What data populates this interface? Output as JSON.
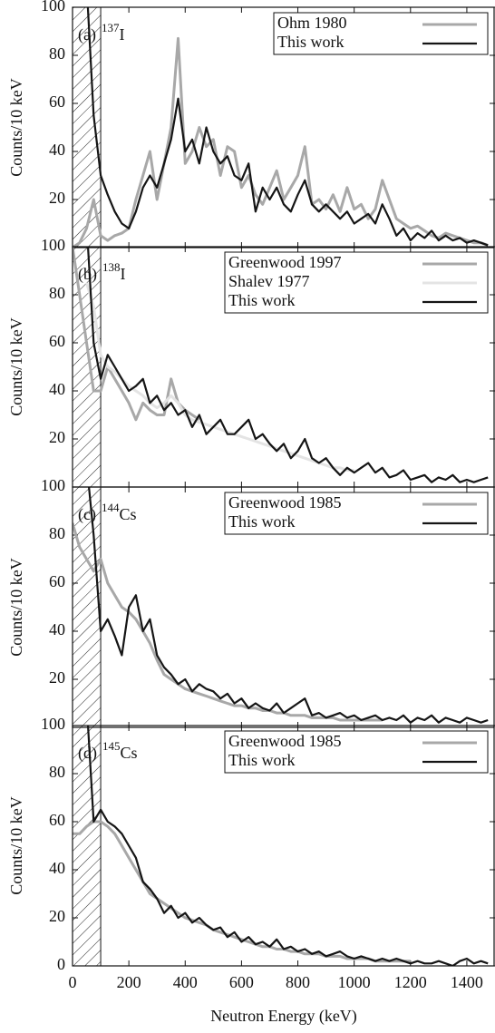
{
  "chart_data": [
    {
      "type": "line",
      "panel_label": "(a)",
      "mass_number": "137",
      "element": "I",
      "ylabel": "Counts/10 keV",
      "legend": "upper right",
      "shaded_xrange": [
        0,
        100
      ],
      "xlim": [
        0,
        1500
      ],
      "ylim": [
        0,
        100
      ],
      "yticks": [
        20,
        40,
        60,
        80,
        100
      ],
      "x": [
        0,
        25,
        50,
        75,
        100,
        125,
        150,
        175,
        200,
        225,
        250,
        275,
        300,
        325,
        350,
        375,
        400,
        425,
        450,
        475,
        500,
        525,
        550,
        575,
        600,
        625,
        650,
        675,
        700,
        725,
        750,
        775,
        800,
        825,
        850,
        875,
        900,
        925,
        950,
        975,
        1000,
        1025,
        1050,
        1075,
        1100,
        1125,
        1150,
        1175,
        1200,
        1225,
        1250,
        1275,
        1300,
        1325,
        1350,
        1375,
        1400,
        1425,
        1450,
        1475
      ],
      "series": [
        {
          "name": "Ohm 1980",
          "color": "#a8a8a8",
          "values": [
            0,
            2,
            8,
            20,
            5,
            3,
            5,
            6,
            8,
            20,
            30,
            40,
            20,
            35,
            50,
            87,
            35,
            40,
            50,
            42,
            45,
            30,
            42,
            40,
            25,
            30,
            22,
            18,
            25,
            32,
            20,
            25,
            30,
            42,
            18,
            20,
            16,
            22,
            15,
            25,
            16,
            18,
            12,
            16,
            28,
            20,
            12,
            10,
            8,
            9,
            7,
            5,
            4,
            6,
            5,
            4,
            3,
            2,
            2,
            1
          ]
        },
        {
          "name": "This work",
          "color": "#151515",
          "values": [
            null,
            null,
            110,
            55,
            30,
            22,
            15,
            10,
            8,
            15,
            25,
            30,
            25,
            35,
            45,
            62,
            40,
            45,
            35,
            50,
            40,
            35,
            38,
            30,
            28,
            35,
            15,
            25,
            20,
            25,
            18,
            15,
            22,
            28,
            18,
            15,
            18,
            15,
            12,
            15,
            10,
            12,
            14,
            10,
            18,
            12,
            5,
            8,
            3,
            6,
            4,
            7,
            3,
            5,
            3,
            4,
            2,
            3,
            2,
            1
          ]
        }
      ]
    },
    {
      "type": "line",
      "panel_label": "(b)",
      "mass_number": "138",
      "element": "I",
      "ylabel": "Counts/10 keV",
      "legend": "upper right",
      "shaded_xrange": [
        0,
        100
      ],
      "xlim": [
        0,
        1500
      ],
      "ylim": [
        0,
        100
      ],
      "yticks": [
        20,
        40,
        60,
        80,
        100
      ],
      "x": [
        0,
        25,
        50,
        75,
        100,
        125,
        150,
        175,
        200,
        225,
        250,
        275,
        300,
        325,
        350,
        375,
        400,
        425,
        450,
        475,
        500,
        525,
        550,
        575,
        600,
        625,
        650,
        675,
        700,
        725,
        750,
        775,
        800,
        825,
        850,
        875,
        900,
        925,
        950,
        975,
        1000,
        1025,
        1050,
        1075,
        1100,
        1125,
        1150,
        1175,
        1200,
        1225,
        1250,
        1275,
        1300,
        1325,
        1350,
        1375,
        1400,
        1425,
        1450,
        1475
      ],
      "series": [
        {
          "name": "Greenwood 1997",
          "color": "#a8a8a8",
          "values": [
            100,
            80,
            60,
            40,
            40,
            50,
            45,
            40,
            35,
            28,
            35,
            32,
            30,
            30,
            45,
            35,
            32,
            30,
            28,
            null,
            null,
            null,
            null,
            null,
            null,
            null,
            null,
            null,
            null,
            null,
            null,
            null,
            null,
            null,
            null,
            null,
            null,
            null,
            null,
            null,
            null,
            null,
            null,
            null,
            null,
            null,
            null,
            null,
            null,
            null,
            null,
            null,
            null,
            null,
            null,
            null,
            null,
            null,
            null,
            null
          ]
        },
        {
          "name": "Shalev 1977",
          "color": "#e4e4e4",
          "values": [
            null,
            null,
            85,
            75,
            55,
            50,
            48,
            45,
            42,
            40,
            38,
            35,
            33,
            35,
            38,
            35,
            30,
            28,
            27,
            26,
            25,
            24,
            23,
            22,
            21,
            20,
            19,
            18,
            17,
            16,
            15,
            14,
            13,
            12,
            11,
            10,
            9,
            8,
            8,
            7,
            7,
            null,
            null,
            null,
            null,
            null,
            null,
            null,
            null,
            null,
            null,
            null,
            null,
            null,
            null,
            null,
            null,
            null,
            null,
            null
          ]
        },
        {
          "name": "This work",
          "color": "#151515",
          "values": [
            null,
            null,
            110,
            60,
            45,
            55,
            50,
            45,
            40,
            42,
            45,
            35,
            38,
            32,
            35,
            30,
            32,
            25,
            30,
            22,
            25,
            28,
            22,
            22,
            25,
            28,
            20,
            22,
            18,
            15,
            18,
            12,
            15,
            20,
            12,
            10,
            12,
            8,
            5,
            8,
            6,
            8,
            10,
            6,
            8,
            4,
            5,
            7,
            3,
            4,
            5,
            2,
            4,
            3,
            5,
            2,
            3,
            2,
            3,
            4
          ]
        }
      ]
    },
    {
      "type": "line",
      "panel_label": "(c)",
      "mass_number": "144",
      "element": "Cs",
      "ylabel": "Counts/10 keV",
      "legend": "upper right",
      "shaded_xrange": [
        0,
        100
      ],
      "xlim": [
        0,
        1500
      ],
      "ylim": [
        0,
        100
      ],
      "yticks": [
        20,
        40,
        60,
        80,
        100
      ],
      "x": [
        0,
        25,
        50,
        75,
        100,
        125,
        150,
        175,
        200,
        225,
        250,
        275,
        300,
        325,
        350,
        375,
        400,
        425,
        450,
        475,
        500,
        525,
        550,
        575,
        600,
        625,
        650,
        675,
        700,
        725,
        750,
        775,
        800,
        825,
        850,
        875,
        900,
        925,
        950,
        975,
        1000,
        1025,
        1050,
        1075,
        1100,
        1125,
        1150,
        1175,
        1200,
        1225,
        1250,
        1275,
        1300,
        1325,
        1350,
        1375,
        1400,
        1425,
        1450,
        1475
      ],
      "series": [
        {
          "name": "Greenwood 1985",
          "color": "#a8a8a8",
          "values": [
            85,
            75,
            70,
            65,
            70,
            60,
            55,
            50,
            48,
            45,
            40,
            35,
            28,
            22,
            20,
            18,
            16,
            15,
            14,
            13,
            12,
            11,
            10,
            9,
            9,
            8,
            8,
            7,
            7,
            6,
            6,
            5,
            5,
            5,
            4,
            4,
            4,
            4,
            3,
            3,
            3,
            3,
            3,
            3,
            3,
            null,
            null,
            null,
            null,
            null,
            null,
            null,
            null,
            null,
            null,
            null,
            null,
            null,
            null,
            null
          ]
        },
        {
          "name": "This work",
          "color": "#151515",
          "values": [
            null,
            null,
            110,
            80,
            40,
            45,
            38,
            30,
            50,
            55,
            40,
            45,
            30,
            25,
            22,
            18,
            20,
            15,
            18,
            16,
            15,
            12,
            14,
            10,
            12,
            8,
            10,
            8,
            7,
            10,
            6,
            8,
            10,
            12,
            5,
            6,
            4,
            5,
            6,
            4,
            5,
            3,
            4,
            5,
            3,
            4,
            3,
            5,
            2,
            4,
            3,
            5,
            2,
            4,
            3,
            2,
            4,
            3,
            2,
            3
          ]
        }
      ]
    },
    {
      "type": "line",
      "panel_label": "(d)",
      "mass_number": "145",
      "element": "Cs",
      "ylabel": "Counts/10 keV",
      "legend": "upper right",
      "xlabel": "Neutron Energy (keV)",
      "shaded_xrange": [
        0,
        100
      ],
      "xlim": [
        0,
        1500
      ],
      "ylim": [
        0,
        100
      ],
      "yticks": [
        0,
        20,
        40,
        60,
        80,
        100
      ],
      "xticks": [
        0,
        200,
        400,
        600,
        800,
        1000,
        1200,
        1400
      ],
      "x": [
        0,
        25,
        50,
        75,
        100,
        125,
        150,
        175,
        200,
        225,
        250,
        275,
        300,
        325,
        350,
        375,
        400,
        425,
        450,
        475,
        500,
        525,
        550,
        575,
        600,
        625,
        650,
        675,
        700,
        725,
        750,
        775,
        800,
        825,
        850,
        875,
        900,
        925,
        950,
        975,
        1000,
        1025,
        1050,
        1075,
        1100,
        1125,
        1150,
        1175,
        1200,
        1225,
        1250,
        1275,
        1300,
        1325,
        1350,
        1375,
        1400,
        1425,
        1450,
        1475
      ],
      "series": [
        {
          "name": "Greenwood 1985",
          "color": "#a8a8a8",
          "values": [
            55,
            55,
            58,
            60,
            60,
            58,
            55,
            50,
            45,
            40,
            35,
            30,
            28,
            26,
            24,
            22,
            20,
            19,
            18,
            17,
            15,
            14,
            13,
            12,
            11,
            10,
            9,
            8,
            8,
            7,
            7,
            6,
            6,
            5,
            5,
            5,
            4,
            4,
            4,
            3,
            3,
            3,
            3,
            2,
            2,
            2,
            2,
            2,
            2,
            null,
            null,
            null,
            null,
            null,
            null,
            null,
            null,
            null,
            null,
            null
          ]
        },
        {
          "name": "This work",
          "color": "#151515",
          "values": [
            null,
            null,
            110,
            60,
            65,
            60,
            58,
            55,
            50,
            45,
            35,
            32,
            28,
            22,
            25,
            20,
            22,
            18,
            20,
            17,
            15,
            16,
            12,
            14,
            10,
            12,
            9,
            10,
            8,
            11,
            7,
            8,
            6,
            7,
            5,
            6,
            4,
            5,
            6,
            4,
            3,
            4,
            3,
            2,
            3,
            2,
            3,
            2,
            1,
            2,
            1,
            1,
            2,
            1,
            0,
            2,
            3,
            1,
            2,
            1
          ]
        }
      ]
    }
  ]
}
